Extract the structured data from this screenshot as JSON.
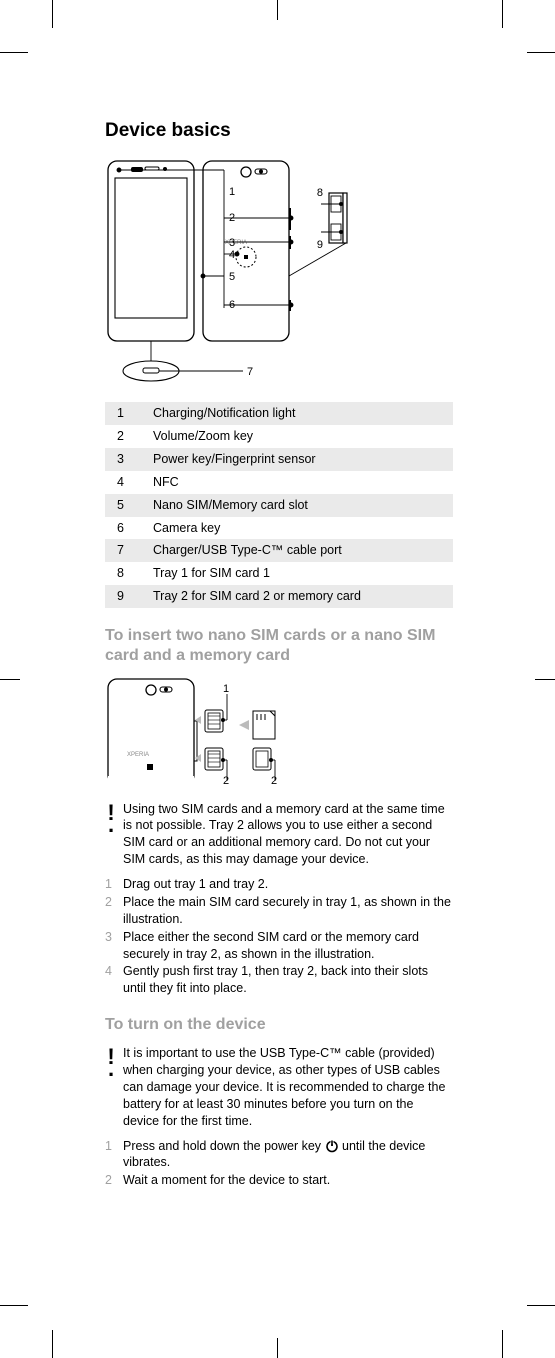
{
  "title": "Device basics",
  "diagram1": {
    "callouts_left": [
      "1",
      "2",
      "3",
      "4",
      "5",
      "6",
      "7"
    ],
    "callouts_right": [
      "8",
      "9"
    ],
    "logo_text": "XPERIA"
  },
  "parts": [
    {
      "n": "1",
      "label": "Charging/Notification light",
      "shade": true
    },
    {
      "n": "2",
      "label": "Volume/Zoom key",
      "shade": false
    },
    {
      "n": "3",
      "label": "Power key/Fingerprint sensor",
      "shade": true
    },
    {
      "n": "4",
      "label": "NFC",
      "shade": false
    },
    {
      "n": "5",
      "label": "Nano SIM/Memory card slot",
      "shade": true
    },
    {
      "n": "6",
      "label": "Camera key",
      "shade": false
    },
    {
      "n": "7",
      "label": "Charger/USB Type-C™ cable port",
      "shade": true
    },
    {
      "n": "8",
      "label": "Tray 1 for SIM card 1",
      "shade": false
    },
    {
      "n": "9",
      "label": "Tray 2 for SIM card 2 or memory card",
      "shade": true
    }
  ],
  "section2_title": "To insert two nano SIM cards or a nano SIM card and a memory card",
  "diagram2_callouts": [
    "1",
    "2",
    "2"
  ],
  "note1": "Using two SIM cards and a memory card at the same time is not possible. Tray 2 allows you to use either a second SIM card or an additional memory card. Do not cut your SIM cards, as this may damage your device.",
  "steps1": [
    "Drag out tray 1 and tray 2.",
    "Place the main SIM card securely in tray 1, as shown in the illustration.",
    "Place either the second SIM card or the memory card securely in tray 2, as shown in the illustration.",
    "Gently push first tray 1, then tray 2, back into their slots until they fit into place."
  ],
  "section3_title": "To turn on the device",
  "note2": "It is important to use the USB Type-C™ cable (provided) when charging your device, as other types of USB cables can damage your device. It is recommended to charge the battery for at least 30 minutes before you turn on the device for the first time.",
  "steps2": [
    {
      "pre": "Press and hold down the power key ",
      "post": " until the device vibrates.",
      "has_icon": true
    },
    {
      "pre": "Wait a moment for the device to start.",
      "post": "",
      "has_icon": false
    }
  ]
}
